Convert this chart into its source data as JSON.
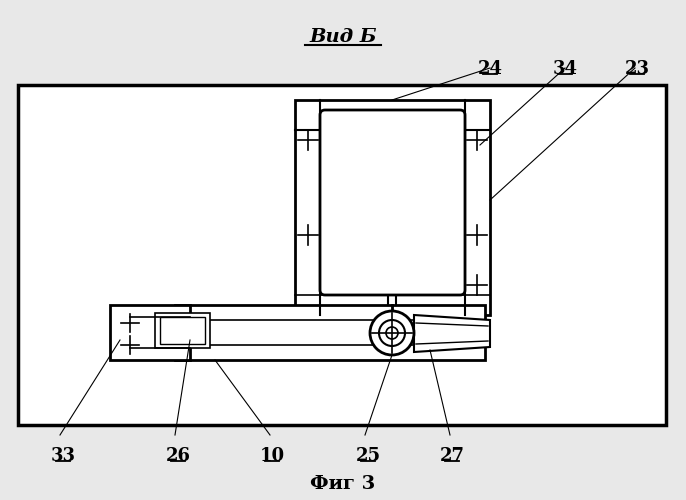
{
  "title": "Вид Б",
  "fig_caption": "Фиг 3",
  "bg_color": "#e8e8e8",
  "line_color": "#000000",
  "inner_bg": "#ffffff",
  "lw_main": 2.0,
  "lw_med": 1.5,
  "lw_thin": 1.0
}
